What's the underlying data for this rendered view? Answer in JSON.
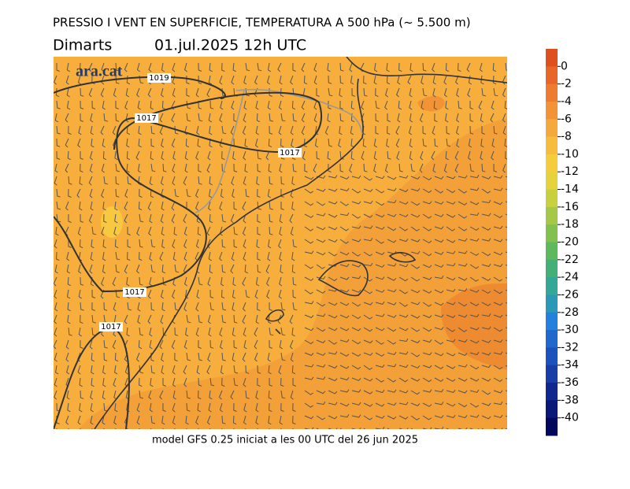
{
  "title": "PRESSIO I VENT EN SUPERFICIE, TEMPERATURA A 500 hPa (~ 5.500 m)",
  "day": "Dimarts",
  "date": "01.jul.2025 12h UTC",
  "logo": "ara.cat",
  "footer": "model GFS 0.25 iniciat a les 00 UTC del 26 jun 2025",
  "isobar_labels": [
    1019,
    1017,
    1017,
    1017,
    1017
  ],
  "colorbar": {
    "ticks": [
      0,
      -2,
      -4,
      -6,
      -8,
      -10,
      -12,
      -14,
      -16,
      -18,
      -20,
      -22,
      -24,
      -26,
      -28,
      -30,
      -32,
      -34,
      -36,
      -38,
      -40
    ],
    "colors": [
      "#e0501e",
      "#e86628",
      "#ee7c2e",
      "#f29436",
      "#f5a83c",
      "#f7bc3e",
      "#f5cc3c",
      "#e6d23c",
      "#c8d040",
      "#a6c848",
      "#82c050",
      "#5eb85c",
      "#44b078",
      "#34a896",
      "#2c98b8",
      "#2480dc",
      "#2068cc",
      "#1c52bc",
      "#163ea6",
      "#10288e",
      "#0a1878",
      "#04085c"
    ]
  }
}
